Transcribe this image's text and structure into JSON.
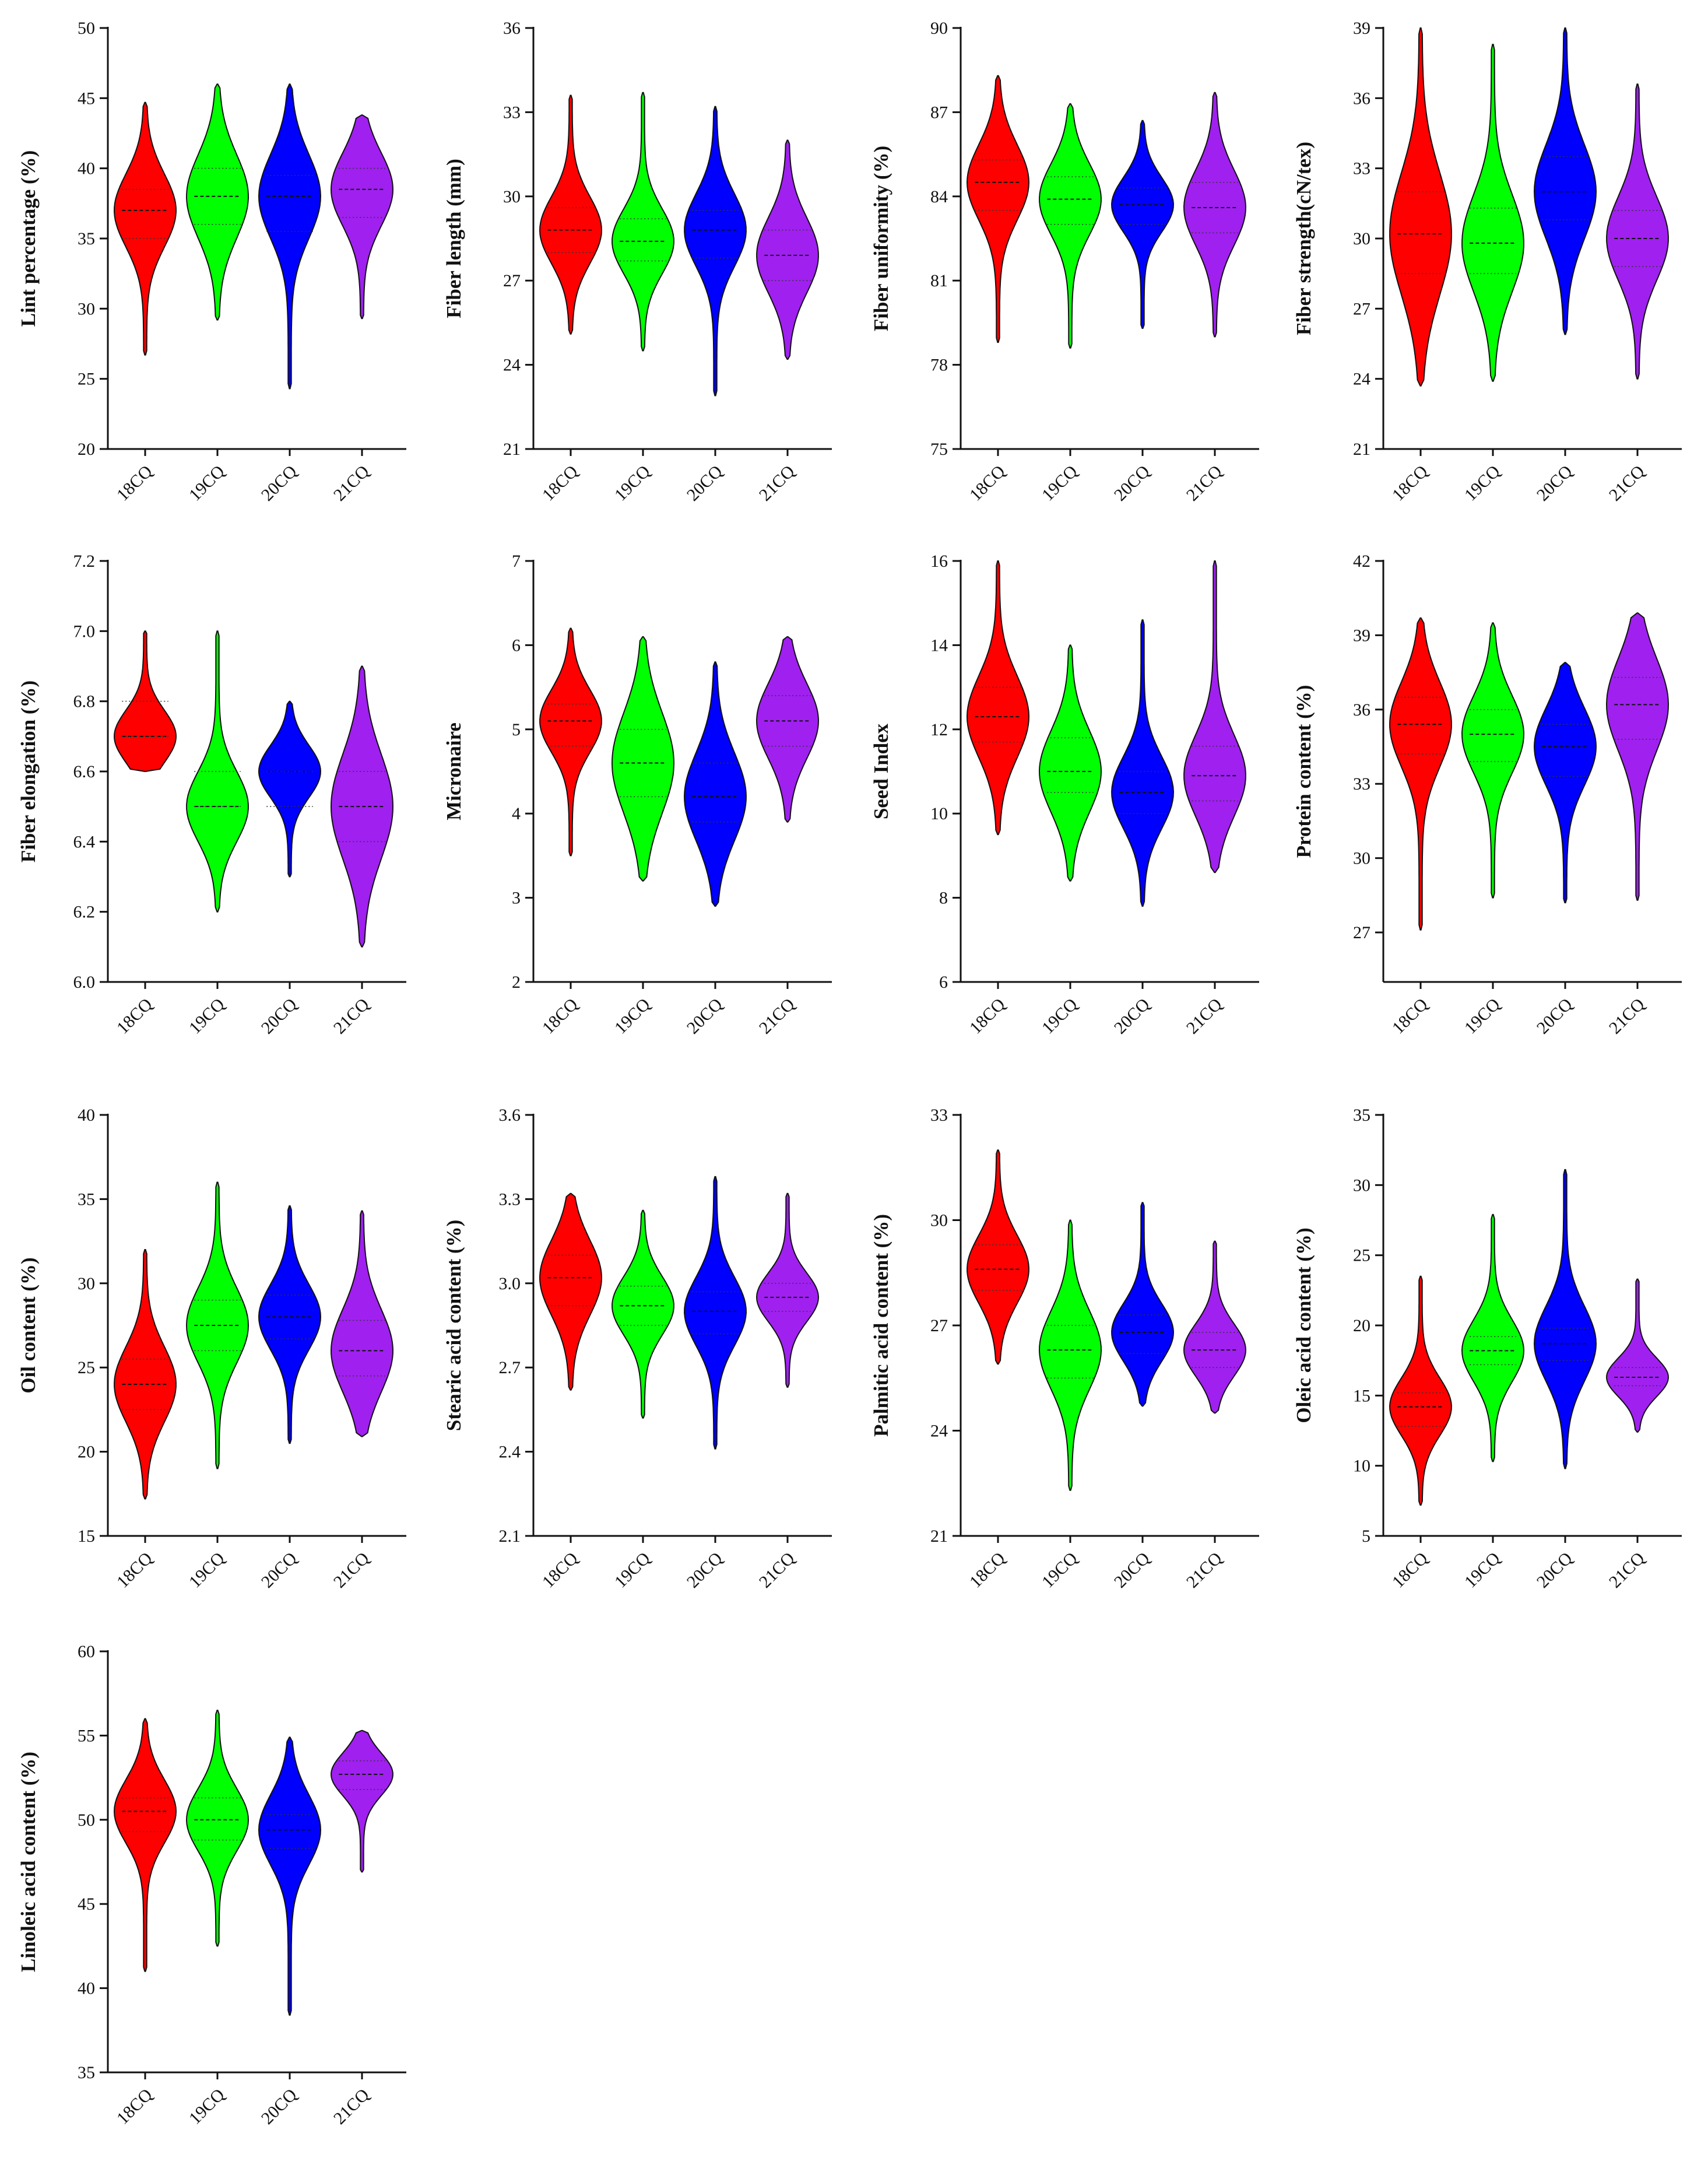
{
  "chart_data": [
    {
      "type": "violin",
      "ylabel": "Lint percentage (%)",
      "categories": [
        "18CQ",
        "19CQ",
        "20CQ",
        "21CQ"
      ],
      "yticks": [
        20,
        25,
        30,
        35,
        40,
        45,
        50
      ],
      "ylim": [
        20,
        50
      ],
      "series": [
        {
          "name": "18CQ",
          "color": "#ff0000",
          "min": 26.7,
          "max": 44.7,
          "median": 37.0,
          "q1": 35.0,
          "q3": 38.5
        },
        {
          "name": "19CQ",
          "color": "#00ff00",
          "min": 29.2,
          "max": 46.0,
          "median": 38.0,
          "q1": 36.0,
          "q3": 40.0
        },
        {
          "name": "20CQ",
          "color": "#0000ff",
          "min": 24.3,
          "max": 46.0,
          "median": 38.0,
          "q1": 35.5,
          "q3": 39.5
        },
        {
          "name": "21CQ",
          "color": "#a020f0",
          "min": 29.3,
          "max": 43.8,
          "median": 38.5,
          "q1": 36.5,
          "q3": 40.0
        }
      ]
    },
    {
      "type": "violin",
      "ylabel": "Fiber length (mm)",
      "categories": [
        "18CQ",
        "19CQ",
        "20CQ",
        "21CQ"
      ],
      "yticks": [
        21,
        24,
        27,
        30,
        33,
        36
      ],
      "ylim": [
        21,
        36
      ],
      "series": [
        {
          "name": "18CQ",
          "color": "#ff0000",
          "min": 25.1,
          "max": 33.6,
          "median": 28.8,
          "q1": 28.0,
          "q3": 29.6
        },
        {
          "name": "19CQ",
          "color": "#00ff00",
          "min": 24.5,
          "max": 33.7,
          "median": 28.4,
          "q1": 27.7,
          "q3": 29.2
        },
        {
          "name": "20CQ",
          "color": "#0000ff",
          "min": 22.9,
          "max": 33.2,
          "median": 28.8,
          "q1": 27.8,
          "q3": 29.5
        },
        {
          "name": "21CQ",
          "color": "#a020f0",
          "min": 24.2,
          "max": 32.0,
          "median": 27.9,
          "q1": 27.0,
          "q3": 28.8
        }
      ]
    },
    {
      "type": "violin",
      "ylabel": "Fiber uniformity (%)",
      "categories": [
        "18CQ",
        "19CQ",
        "20CQ",
        "21CQ"
      ],
      "yticks": [
        75,
        78,
        81,
        84,
        87,
        90
      ],
      "ylim": [
        75,
        90
      ],
      "series": [
        {
          "name": "18CQ",
          "color": "#ff0000",
          "min": 78.8,
          "max": 88.3,
          "median": 84.5,
          "q1": 83.5,
          "q3": 85.3
        },
        {
          "name": "19CQ",
          "color": "#00ff00",
          "min": 78.6,
          "max": 87.3,
          "median": 83.9,
          "q1": 83.0,
          "q3": 84.7
        },
        {
          "name": "20CQ",
          "color": "#0000ff",
          "min": 79.3,
          "max": 86.7,
          "median": 83.7,
          "q1": 83.0,
          "q3": 84.3
        },
        {
          "name": "21CQ",
          "color": "#a020f0",
          "min": 79.0,
          "max": 87.7,
          "median": 83.6,
          "q1": 82.7,
          "q3": 84.5
        }
      ]
    },
    {
      "type": "violin",
      "ylabel": "Fiber strength(cN/tex)",
      "categories": [
        "18CQ",
        "19CQ",
        "20CQ",
        "21CQ"
      ],
      "yticks": [
        21,
        24,
        27,
        30,
        33,
        36,
        39
      ],
      "ylim": [
        21,
        39
      ],
      "series": [
        {
          "name": "18CQ",
          "color": "#ff0000",
          "min": 23.7,
          "max": 39.0,
          "median": 30.2,
          "q1": 28.5,
          "q3": 32.0
        },
        {
          "name": "19CQ",
          "color": "#00ff00",
          "min": 23.9,
          "max": 38.3,
          "median": 29.8,
          "q1": 28.5,
          "q3": 31.3
        },
        {
          "name": "20CQ",
          "color": "#0000ff",
          "min": 25.9,
          "max": 39.0,
          "median": 32.0,
          "q1": 30.8,
          "q3": 33.5
        },
        {
          "name": "21CQ",
          "color": "#a020f0",
          "min": 24.0,
          "max": 36.6,
          "median": 30.0,
          "q1": 28.8,
          "q3": 31.2
        }
      ]
    },
    {
      "type": "violin",
      "ylabel": "Fiber elongation (%)",
      "categories": [
        "18CQ",
        "19CQ",
        "20CQ",
        "21CQ"
      ],
      "yticks": [
        6.0,
        6.2,
        6.4,
        6.6,
        6.8,
        7.0,
        7.2
      ],
      "ylim": [
        6.0,
        7.2
      ],
      "series": [
        {
          "name": "18CQ",
          "color": "#ff0000",
          "min": 6.6,
          "max": 7.0,
          "median": 6.7,
          "q1": 6.7,
          "q3": 6.8
        },
        {
          "name": "19CQ",
          "color": "#00ff00",
          "min": 6.2,
          "max": 7.0,
          "median": 6.5,
          "q1": 6.5,
          "q3": 6.6
        },
        {
          "name": "20CQ",
          "color": "#0000ff",
          "min": 6.3,
          "max": 6.8,
          "median": 6.6,
          "q1": 6.5,
          "q3": 6.6
        },
        {
          "name": "21CQ",
          "color": "#a020f0",
          "min": 6.1,
          "max": 6.9,
          "median": 6.5,
          "q1": 6.4,
          "q3": 6.6
        }
      ]
    },
    {
      "type": "violin",
      "ylabel": "Micronaire",
      "categories": [
        "18CQ",
        "19CQ",
        "20CQ",
        "21CQ"
      ],
      "yticks": [
        2,
        3,
        4,
        5,
        6,
        7
      ],
      "ylim": [
        2,
        7
      ],
      "series": [
        {
          "name": "18CQ",
          "color": "#ff0000",
          "min": 3.5,
          "max": 6.2,
          "median": 5.1,
          "q1": 4.8,
          "q3": 5.3
        },
        {
          "name": "19CQ",
          "color": "#00ff00",
          "min": 3.2,
          "max": 6.1,
          "median": 4.6,
          "q1": 4.2,
          "q3": 5.0
        },
        {
          "name": "20CQ",
          "color": "#0000ff",
          "min": 2.9,
          "max": 5.8,
          "median": 4.2,
          "q1": 3.9,
          "q3": 4.6
        },
        {
          "name": "21CQ",
          "color": "#a020f0",
          "min": 3.9,
          "max": 6.1,
          "median": 5.1,
          "q1": 4.8,
          "q3": 5.4
        }
      ]
    },
    {
      "type": "violin",
      "ylabel": "Seed Index",
      "categories": [
        "18CQ",
        "19CQ",
        "20CQ",
        "21CQ"
      ],
      "yticks": [
        6,
        8,
        10,
        12,
        14,
        16
      ],
      "ylim": [
        6,
        16
      ],
      "series": [
        {
          "name": "18CQ",
          "color": "#ff0000",
          "min": 9.5,
          "max": 16.0,
          "median": 12.3,
          "q1": 11.7,
          "q3": 13.0
        },
        {
          "name": "19CQ",
          "color": "#00ff00",
          "min": 8.4,
          "max": 14.0,
          "median": 11.0,
          "q1": 10.5,
          "q3": 11.8
        },
        {
          "name": "20CQ",
          "color": "#0000ff",
          "min": 7.8,
          "max": 14.6,
          "median": 10.5,
          "q1": 10.0,
          "q3": 11.0
        },
        {
          "name": "21CQ",
          "color": "#a020f0",
          "min": 8.6,
          "max": 16.0,
          "median": 10.9,
          "q1": 10.3,
          "q3": 11.6
        }
      ]
    },
    {
      "type": "violin",
      "ylabel": "Protein content (%)",
      "categories": [
        "18CQ",
        "19CQ",
        "20CQ",
        "21CQ"
      ],
      "yticks": [
        27,
        30,
        33,
        36,
        39,
        42
      ],
      "ylim": [
        25,
        42
      ],
      "series": [
        {
          "name": "18CQ",
          "color": "#ff0000",
          "min": 27.1,
          "max": 39.7,
          "median": 35.4,
          "q1": 34.2,
          "q3": 36.5
        },
        {
          "name": "19CQ",
          "color": "#00ff00",
          "min": 28.4,
          "max": 39.5,
          "median": 35.0,
          "q1": 33.9,
          "q3": 36.0
        },
        {
          "name": "20CQ",
          "color": "#0000ff",
          "min": 28.2,
          "max": 37.9,
          "median": 34.5,
          "q1": 33.3,
          "q3": 35.4
        },
        {
          "name": "21CQ",
          "color": "#a020f0",
          "min": 28.3,
          "max": 39.9,
          "median": 36.2,
          "q1": 34.8,
          "q3": 37.3
        }
      ]
    },
    {
      "type": "violin",
      "ylabel": "Oil content (%)",
      "categories": [
        "18CQ",
        "19CQ",
        "20CQ",
        "21CQ"
      ],
      "yticks": [
        15,
        20,
        25,
        30,
        35,
        40
      ],
      "ylim": [
        15,
        40
      ],
      "series": [
        {
          "name": "18CQ",
          "color": "#ff0000",
          "min": 17.2,
          "max": 32.0,
          "median": 24.0,
          "q1": 22.5,
          "q3": 25.5
        },
        {
          "name": "19CQ",
          "color": "#00ff00",
          "min": 19.0,
          "max": 36.0,
          "median": 27.5,
          "q1": 26.0,
          "q3": 29.0
        },
        {
          "name": "20CQ",
          "color": "#0000ff",
          "min": 20.5,
          "max": 34.6,
          "median": 28.0,
          "q1": 26.7,
          "q3": 29.3
        },
        {
          "name": "21CQ",
          "color": "#a020f0",
          "min": 20.9,
          "max": 34.3,
          "median": 26.0,
          "q1": 24.5,
          "q3": 27.8
        }
      ]
    },
    {
      "type": "violin",
      "ylabel": "Stearic acid content (%)",
      "categories": [
        "18CQ",
        "19CQ",
        "20CQ",
        "21CQ"
      ],
      "yticks": [
        2.1,
        2.4,
        2.7,
        3.0,
        3.3,
        3.6
      ],
      "ylim": [
        2.1,
        3.6
      ],
      "series": [
        {
          "name": "18CQ",
          "color": "#ff0000",
          "min": 2.62,
          "max": 3.32,
          "median": 3.02,
          "q1": 2.92,
          "q3": 3.1
        },
        {
          "name": "19CQ",
          "color": "#00ff00",
          "min": 2.52,
          "max": 3.26,
          "median": 2.92,
          "q1": 2.85,
          "q3": 2.99
        },
        {
          "name": "20CQ",
          "color": "#0000ff",
          "min": 2.41,
          "max": 3.38,
          "median": 2.9,
          "q1": 2.82,
          "q3": 2.97
        },
        {
          "name": "21CQ",
          "color": "#a020f0",
          "min": 2.63,
          "max": 3.32,
          "median": 2.95,
          "q1": 2.9,
          "q3": 3.0
        }
      ]
    },
    {
      "type": "violin",
      "ylabel": "Palmitic acid content (%)",
      "categories": [
        "18CQ",
        "19CQ",
        "20CQ",
        "21CQ"
      ],
      "yticks": [
        21,
        24,
        27,
        30,
        33
      ],
      "ylim": [
        21,
        33
      ],
      "series": [
        {
          "name": "18CQ",
          "color": "#ff0000",
          "min": 25.9,
          "max": 32.0,
          "median": 28.6,
          "q1": 28.0,
          "q3": 29.3
        },
        {
          "name": "19CQ",
          "color": "#00ff00",
          "min": 22.3,
          "max": 30.0,
          "median": 26.3,
          "q1": 25.5,
          "q3": 27.0
        },
        {
          "name": "20CQ",
          "color": "#0000ff",
          "min": 24.7,
          "max": 30.5,
          "median": 26.8,
          "q1": 26.2,
          "q3": 27.3
        },
        {
          "name": "21CQ",
          "color": "#a020f0",
          "min": 24.5,
          "max": 29.4,
          "median": 26.3,
          "q1": 25.8,
          "q3": 26.8
        }
      ]
    },
    {
      "type": "violin",
      "ylabel": "Oleic acid content (%)",
      "categories": [
        "18CQ",
        "19CQ",
        "20CQ",
        "21CQ"
      ],
      "yticks": [
        5,
        10,
        15,
        20,
        25,
        30,
        35
      ],
      "ylim": [
        5,
        35
      ],
      "series": [
        {
          "name": "18CQ",
          "color": "#ff0000",
          "min": 7.2,
          "max": 23.5,
          "median": 14.2,
          "q1": 12.8,
          "q3": 15.2
        },
        {
          "name": "19CQ",
          "color": "#00ff00",
          "min": 10.3,
          "max": 27.9,
          "median": 18.2,
          "q1": 17.2,
          "q3": 19.2
        },
        {
          "name": "20CQ",
          "color": "#0000ff",
          "min": 9.8,
          "max": 31.1,
          "median": 18.7,
          "q1": 17.5,
          "q3": 19.8
        },
        {
          "name": "21CQ",
          "color": "#a020f0",
          "min": 12.4,
          "max": 23.3,
          "median": 16.3,
          "q1": 15.7,
          "q3": 17.0
        }
      ]
    },
    {
      "type": "violin",
      "ylabel": "Linoleic acid content (%)",
      "categories": [
        "18CQ",
        "19CQ",
        "20CQ",
        "21CQ"
      ],
      "yticks": [
        35,
        40,
        45,
        50,
        55,
        60
      ],
      "ylim": [
        35,
        60
      ],
      "series": [
        {
          "name": "18CQ",
          "color": "#ff0000",
          "min": 41.0,
          "max": 56.0,
          "median": 50.5,
          "q1": 49.3,
          "q3": 51.3
        },
        {
          "name": "19CQ",
          "color": "#00ff00",
          "min": 42.5,
          "max": 56.5,
          "median": 50.0,
          "q1": 48.8,
          "q3": 51.3
        },
        {
          "name": "20CQ",
          "color": "#0000ff",
          "min": 38.4,
          "max": 54.9,
          "median": 49.4,
          "q1": 48.3,
          "q3": 50.3
        },
        {
          "name": "21CQ",
          "color": "#a020f0",
          "min": 46.9,
          "max": 55.3,
          "median": 52.7,
          "q1": 51.8,
          "q3": 53.5
        }
      ]
    }
  ]
}
